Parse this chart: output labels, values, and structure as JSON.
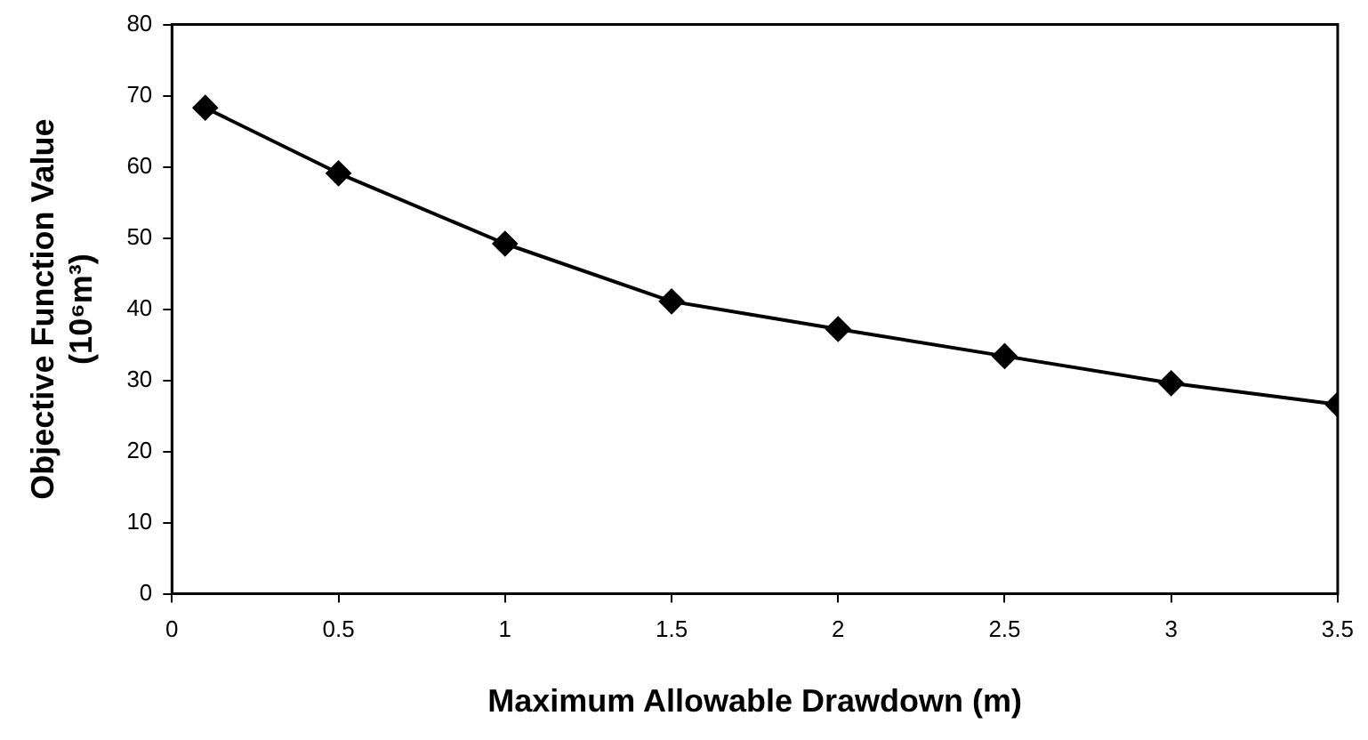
{
  "chart_data": {
    "type": "line",
    "xlabel": "Maximum Allowable Drawdown (m)",
    "ylabel": "Objective Function Value\n(10⁶m³)",
    "x": [
      0.1,
      0.5,
      1,
      1.5,
      2,
      2.5,
      3,
      3.5
    ],
    "series": [
      {
        "color": "#000000",
        "values": [
          68.3,
          59.1,
          49.2,
          41.1,
          37.2,
          33.4,
          29.6,
          26.6
        ]
      }
    ],
    "xlim": [
      0,
      3.5
    ],
    "xticks": [
      0,
      0.5,
      1,
      1.5,
      2,
      2.5,
      3,
      3.5
    ],
    "ylim": [
      0,
      80
    ],
    "yticks": [
      0,
      10,
      20,
      30,
      40,
      50,
      60,
      70,
      80
    ],
    "grid": false,
    "legend": false,
    "marker": "diamond",
    "line_style": "solid"
  }
}
